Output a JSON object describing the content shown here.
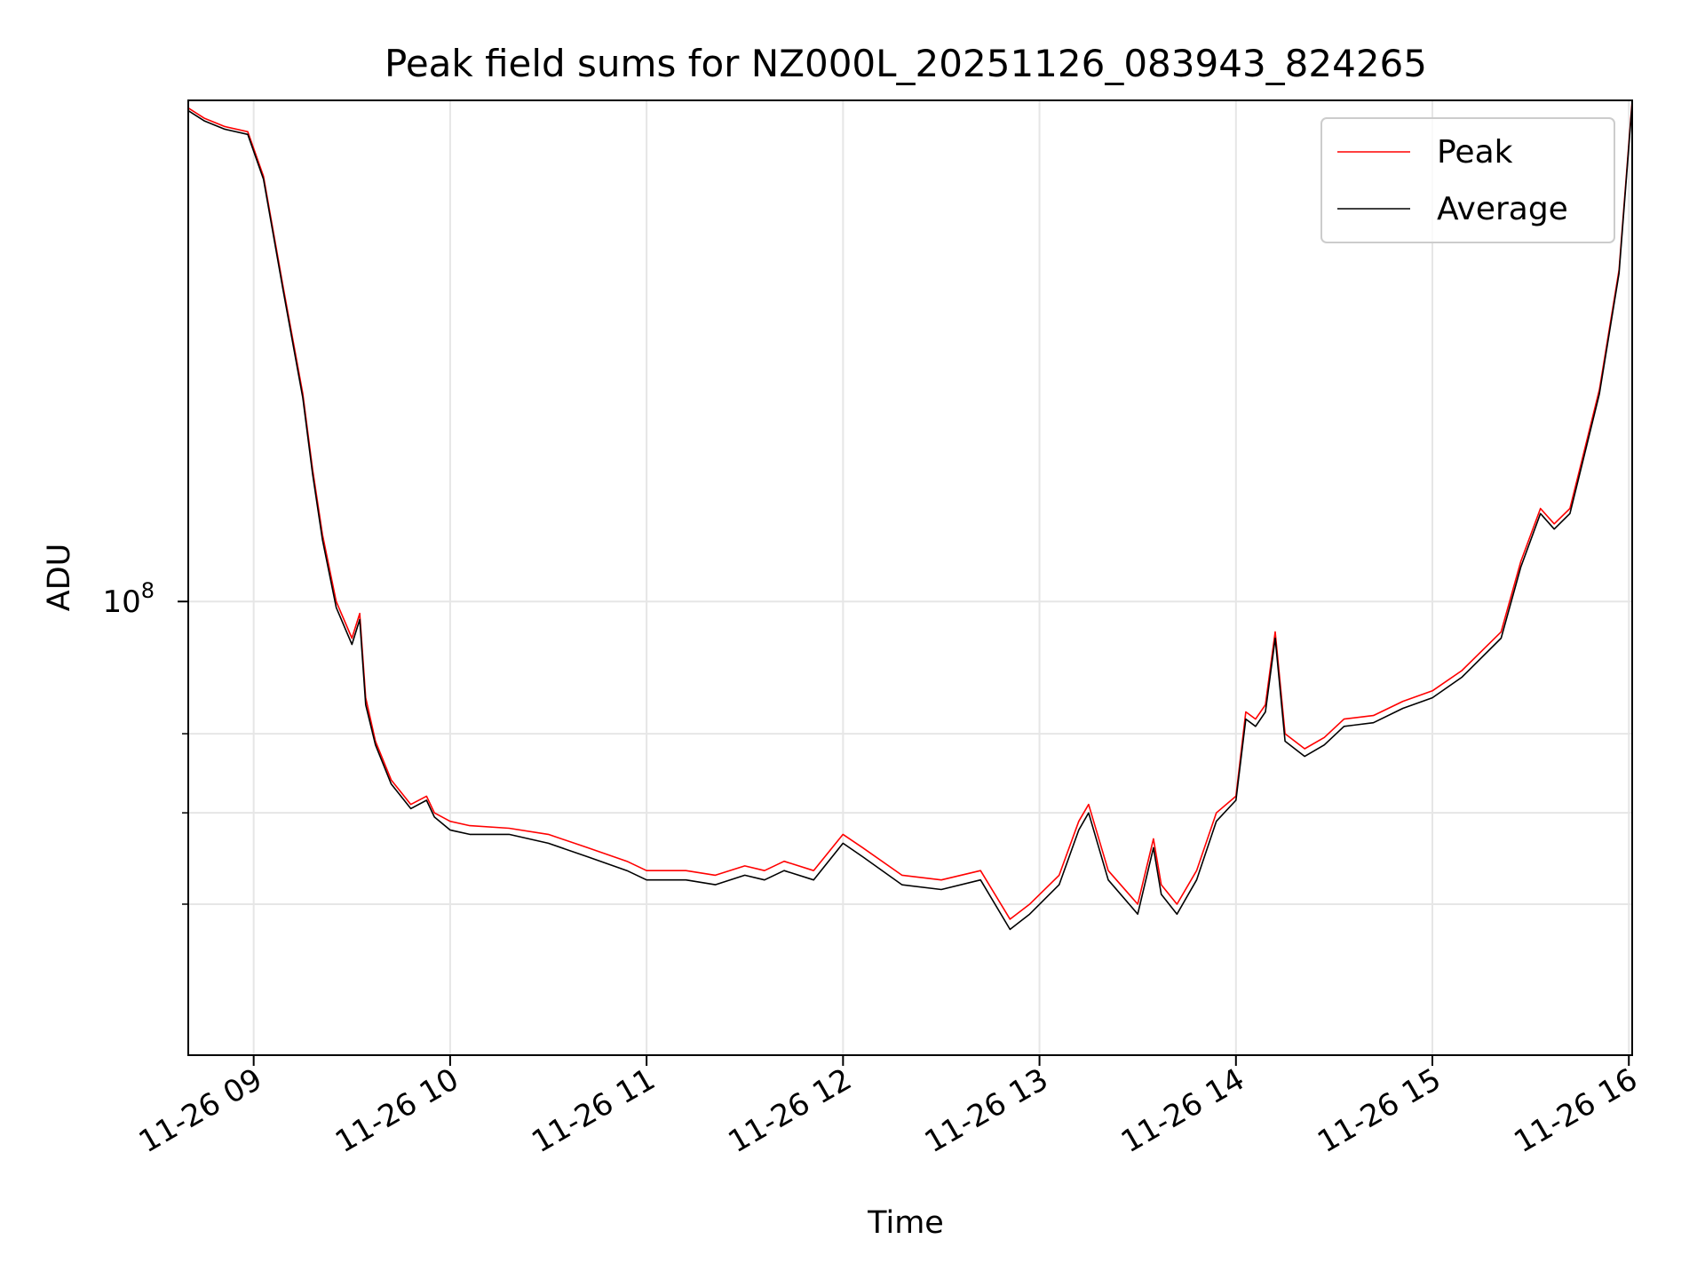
{
  "chart_data": {
    "type": "line",
    "title": "Peak field sums for NZ000L_20251126_083943_824265",
    "xlabel": "Time",
    "ylabel": "ADU",
    "yscale": "log",
    "ylim": [
      46500000,
      233000000
    ],
    "xlim": [
      8.667,
      16.017
    ],
    "x_ticks": [
      {
        "value": 9,
        "label": "11-26 09"
      },
      {
        "value": 10,
        "label": "11-26 10"
      },
      {
        "value": 11,
        "label": "11-26 11"
      },
      {
        "value": 12,
        "label": "11-26 12"
      },
      {
        "value": 13,
        "label": "11-26 13"
      },
      {
        "value": 14,
        "label": "11-26 14"
      },
      {
        "value": 15,
        "label": "11-26 15"
      },
      {
        "value": 16,
        "label": "11-26 16"
      }
    ],
    "y_major_ticks": [
      {
        "value": 100000000,
        "base": "10",
        "exp": "8"
      }
    ],
    "y_minor_ticks": [
      60000000,
      70000000,
      80000000
    ],
    "grid": true,
    "legend_position": "top-right",
    "series": [
      {
        "name": "Peak",
        "color": "#ff0000",
        "x": [
          8.667,
          8.75,
          8.85,
          8.97,
          9.05,
          9.15,
          9.25,
          9.3,
          9.35,
          9.42,
          9.5,
          9.54,
          9.57,
          9.62,
          9.7,
          9.8,
          9.88,
          9.92,
          10.0,
          10.1,
          10.3,
          10.5,
          10.7,
          10.9,
          11.0,
          11.2,
          11.35,
          11.5,
          11.6,
          11.7,
          11.85,
          12.0,
          12.1,
          12.3,
          12.5,
          12.7,
          12.85,
          12.95,
          13.1,
          13.2,
          13.25,
          13.35,
          13.5,
          13.58,
          13.62,
          13.7,
          13.8,
          13.9,
          14.0,
          14.05,
          14.1,
          14.15,
          14.2,
          14.25,
          14.35,
          14.45,
          14.55,
          14.7,
          14.85,
          15.0,
          15.15,
          15.35,
          15.45,
          15.55,
          15.62,
          15.7,
          15.75,
          15.85,
          15.95,
          16.017
        ],
        "values": [
          230000000,
          226000000,
          223000000,
          221000000,
          205000000,
          170000000,
          142000000,
          125000000,
          112000000,
          100000000,
          94000000,
          98000000,
          85000000,
          79000000,
          74000000,
          71000000,
          72000000,
          70000000,
          69000000,
          68500000,
          68200000,
          67500000,
          66000000,
          64500000,
          63500000,
          63500000,
          63000000,
          64000000,
          63500000,
          64500000,
          63500000,
          67500000,
          66000000,
          63000000,
          62500000,
          63500000,
          58500000,
          60000000,
          63000000,
          69000000,
          71000000,
          63500000,
          60000000,
          67000000,
          62000000,
          60000000,
          63500000,
          70000000,
          72000000,
          83000000,
          82000000,
          84000000,
          95000000,
          80000000,
          78000000,
          79500000,
          82000000,
          82500000,
          84500000,
          86000000,
          89000000,
          95000000,
          107000000,
          117000000,
          114000000,
          117000000,
          125000000,
          143000000,
          175000000,
          233000000
        ]
      },
      {
        "name": "Average",
        "color": "#000000",
        "x": [
          8.667,
          8.75,
          8.85,
          8.97,
          9.05,
          9.15,
          9.25,
          9.3,
          9.35,
          9.42,
          9.5,
          9.54,
          9.57,
          9.62,
          9.7,
          9.8,
          9.88,
          9.92,
          10.0,
          10.1,
          10.3,
          10.5,
          10.7,
          10.9,
          11.0,
          11.2,
          11.35,
          11.5,
          11.6,
          11.7,
          11.85,
          12.0,
          12.1,
          12.3,
          12.5,
          12.7,
          12.85,
          12.95,
          13.1,
          13.2,
          13.25,
          13.35,
          13.5,
          13.58,
          13.62,
          13.7,
          13.8,
          13.9,
          14.0,
          14.05,
          14.1,
          14.15,
          14.2,
          14.25,
          14.35,
          14.45,
          14.55,
          14.7,
          14.85,
          15.0,
          15.15,
          15.35,
          15.45,
          15.55,
          15.62,
          15.7,
          15.75,
          15.85,
          15.95,
          16.017
        ],
        "values": [
          229000000,
          225000000,
          222000000,
          220000000,
          204000000,
          169000000,
          141000000,
          124000000,
          111000000,
          99000000,
          93000000,
          97000000,
          84000000,
          78500000,
          73500000,
          70500000,
          71500000,
          69500000,
          68000000,
          67500000,
          67500000,
          66500000,
          65000000,
          63500000,
          62500000,
          62500000,
          62000000,
          63000000,
          62500000,
          63500000,
          62500000,
          66500000,
          65000000,
          62000000,
          61500000,
          62500000,
          57500000,
          59000000,
          62000000,
          68000000,
          70000000,
          62500000,
          59000000,
          66000000,
          61000000,
          59000000,
          62500000,
          69000000,
          71500000,
          82000000,
          81000000,
          83000000,
          94000000,
          79000000,
          77000000,
          78500000,
          81000000,
          81500000,
          83500000,
          85000000,
          88000000,
          94000000,
          106000000,
          116000000,
          113000000,
          116000000,
          124000000,
          142000000,
          174000000,
          232000000
        ]
      }
    ]
  }
}
